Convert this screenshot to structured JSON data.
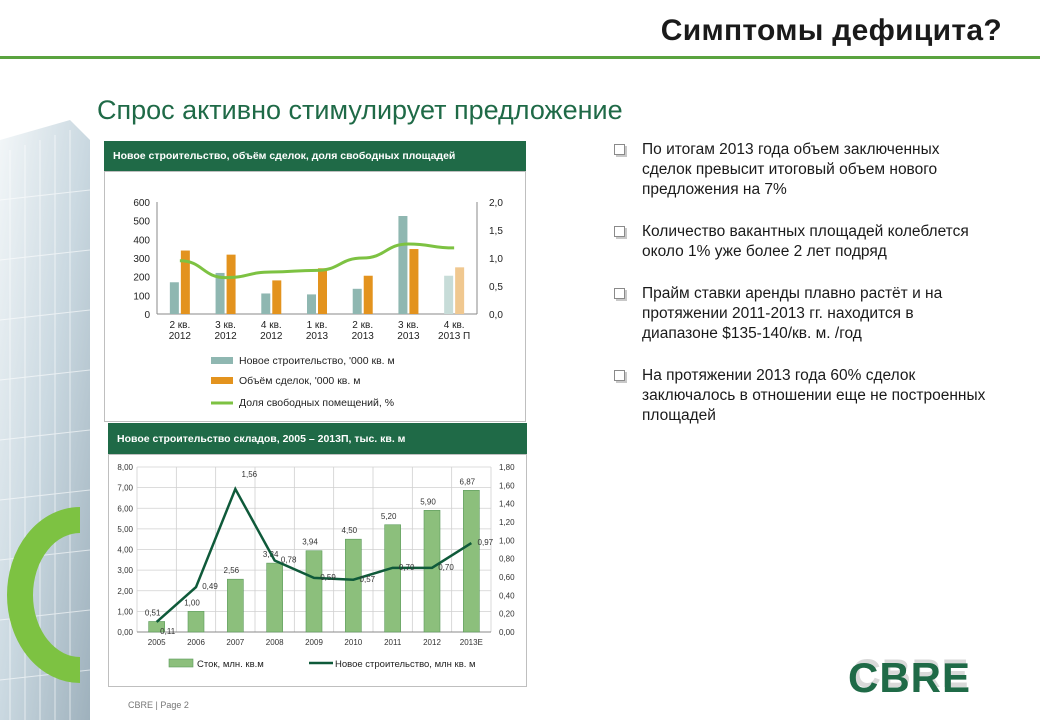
{
  "slide": {
    "title": "Симптомы дефицита?",
    "subtitle": "Спрос активно стимулирует предложение",
    "footer": "CBRE | Page 2",
    "logo": "CBRE"
  },
  "bullets": [
    " По итогам 2013 года объем заключенных сделок превысит итоговый объем нового предложения на 7%",
    "Количество вакантных площадей колеблется около 1% уже более 2 лет подряд",
    "Прайм ставки аренды плавно растёт и на протяжении 2011-2013 гг. находится в  диапазоне $135-140/кв. м. /год",
    "На протяжении 2013 года 60% сделок заключалось в отношении еще не построенных площадей"
  ],
  "colors": {
    "accent_green": "#5aa33f",
    "dark_green": "#1f6a47",
    "bar_teal": "#8fb7b1",
    "bar_orange": "#e3931e",
    "line_green": "#7dc242",
    "bar_green2": "#8cbf7c",
    "line_dark": "#0f5a3a"
  },
  "chart_data": [
    {
      "type": "bar",
      "header": "Новое строительство, объём сделок, доля свободных площадей",
      "categories": [
        [
          "2 кв.",
          "2012"
        ],
        [
          "3 кв.",
          "2012"
        ],
        [
          "4 кв.",
          "2012"
        ],
        [
          "1 кв.",
          "2013"
        ],
        [
          "2 кв.",
          "2013"
        ],
        [
          "3 кв.",
          "2013"
        ],
        [
          "4 кв.",
          "2013 П"
        ]
      ],
      "series": [
        {
          "name": "Новое строительство, '000 кв. м",
          "kind": "bar",
          "axis": "left",
          "values": [
            170,
            220,
            110,
            105,
            135,
            525,
            205
          ]
        },
        {
          "name": "Объём сделок, '000 кв. м",
          "kind": "bar",
          "axis": "left",
          "values": [
            340,
            318,
            180,
            245,
            205,
            348,
            250
          ]
        },
        {
          "name": "Доля свободных помещений, %",
          "kind": "line",
          "axis": "right",
          "values": [
            0.95,
            0.65,
            0.75,
            0.78,
            1.0,
            1.25,
            1.18
          ]
        }
      ],
      "ylim": [
        0,
        600
      ],
      "yticks": [
        "0",
        "100",
        "200",
        "300",
        "400",
        "500",
        "600"
      ],
      "y2lim": [
        0,
        2.0
      ],
      "y2ticks": [
        "0,0",
        "0,5",
        "1,0",
        "1,5",
        "2,0"
      ],
      "grid": false,
      "legend": "bottom"
    },
    {
      "type": "bar",
      "header": "Новое строительство складов, 2005 – 2013П, тыс. кв. м",
      "categories": [
        "2005",
        "2006",
        "2007",
        "2008",
        "2009",
        "2010",
        "2011",
        "2012",
        "2013E"
      ],
      "series": [
        {
          "name": "Сток, млн. кв.м",
          "kind": "bar",
          "axis": "left",
          "values": [
            0.51,
            1.0,
            2.56,
            3.34,
            3.94,
            4.5,
            5.2,
            5.9,
            6.87
          ],
          "labels": [
            "0,51",
            "1,00",
            "2,56",
            "3,34",
            "3,94",
            "4,50",
            "5,20",
            "5,90",
            "6,87"
          ]
        },
        {
          "name": "Новое строительство, млн кв. м",
          "kind": "line",
          "axis": "right",
          "values": [
            0.11,
            0.49,
            1.56,
            0.78,
            0.59,
            0.57,
            0.7,
            0.7,
            0.97
          ],
          "labels": [
            "0,11",
            "0,49",
            "1,56",
            "0,78",
            "0,59",
            "0,57",
            "0,70",
            "0,70",
            "0,97"
          ]
        }
      ],
      "ylim": [
        0,
        8
      ],
      "yticks": [
        "0,00",
        "1,00",
        "2,00",
        "3,00",
        "4,00",
        "5,00",
        "6,00",
        "7,00",
        "8,00"
      ],
      "y2lim": [
        0,
        1.8
      ],
      "y2ticks": [
        "0,00",
        "0,20",
        "0,40",
        "0,60",
        "0,80",
        "1,00",
        "1,20",
        "1,40",
        "1,60",
        "1,80"
      ],
      "grid": true,
      "legend": "bottom"
    }
  ]
}
